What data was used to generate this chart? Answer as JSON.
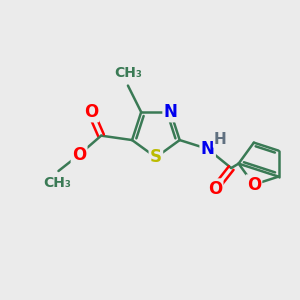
{
  "background_color": "#ebebeb",
  "bond_color": "#3a7a55",
  "bond_lw": 1.8,
  "atom_colors": {
    "N": "#0000ee",
    "S": "#bbbb00",
    "O": "#ff0000",
    "H": "#607080",
    "C": "#3a7a55"
  },
  "fs": 11,
  "figsize": [
    3.0,
    3.0
  ],
  "dpi": 100
}
